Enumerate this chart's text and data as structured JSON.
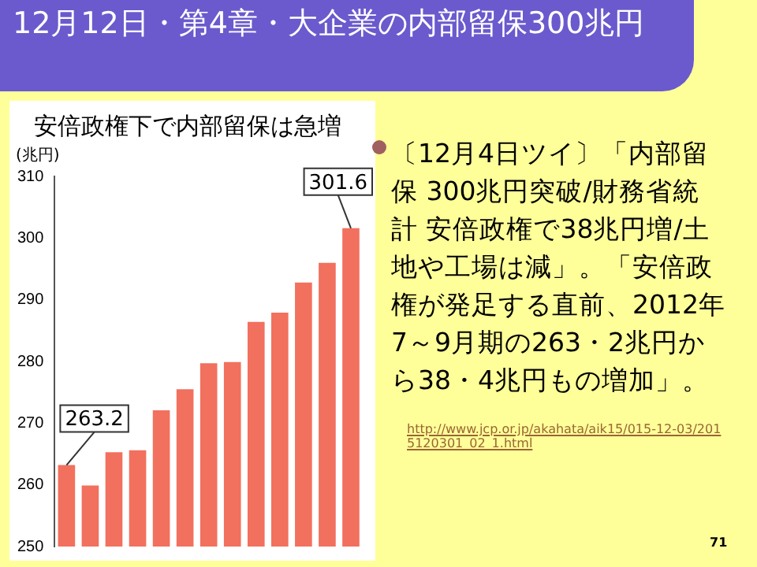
{
  "chart_data": {
    "type": "bar",
    "title": "安倍政権下で内部留保は急増",
    "ylabel": "(兆円)",
    "categories": [
      null,
      null,
      null,
      null,
      null,
      null,
      null,
      null,
      null,
      null,
      null,
      null,
      null
    ],
    "values": [
      263.2,
      259.9,
      265.3,
      265.6,
      272.1,
      275.5,
      279.7,
      279.9,
      286.4,
      287.9,
      292.8,
      296.0,
      301.6
    ],
    "value_labels": [
      "263.2",
      null,
      null,
      null,
      null,
      null,
      null,
      null,
      null,
      null,
      null,
      null,
      "301.6"
    ],
    "color": "#f2705e",
    "ylim": [
      250,
      310
    ],
    "yticks": [
      250,
      260,
      270,
      280,
      290,
      300,
      310
    ],
    "grid": false,
    "legend": false,
    "annotations": [
      "12月12日・第4章・大企業の内部留保300兆円",
      "〔12月4日ツイ〕「内部留保 300兆円突破/財務省統計 安倍政権で38兆円増/土地や工場は減」。「安倍政権が発足する直前、2012年7～9月期の263・2兆円から38・4兆円もの増加」。",
      "http://www.jcp.or.jp/akahata/aik15/015-12-03/2015120301_02_1.html",
      "71"
    ]
  }
}
